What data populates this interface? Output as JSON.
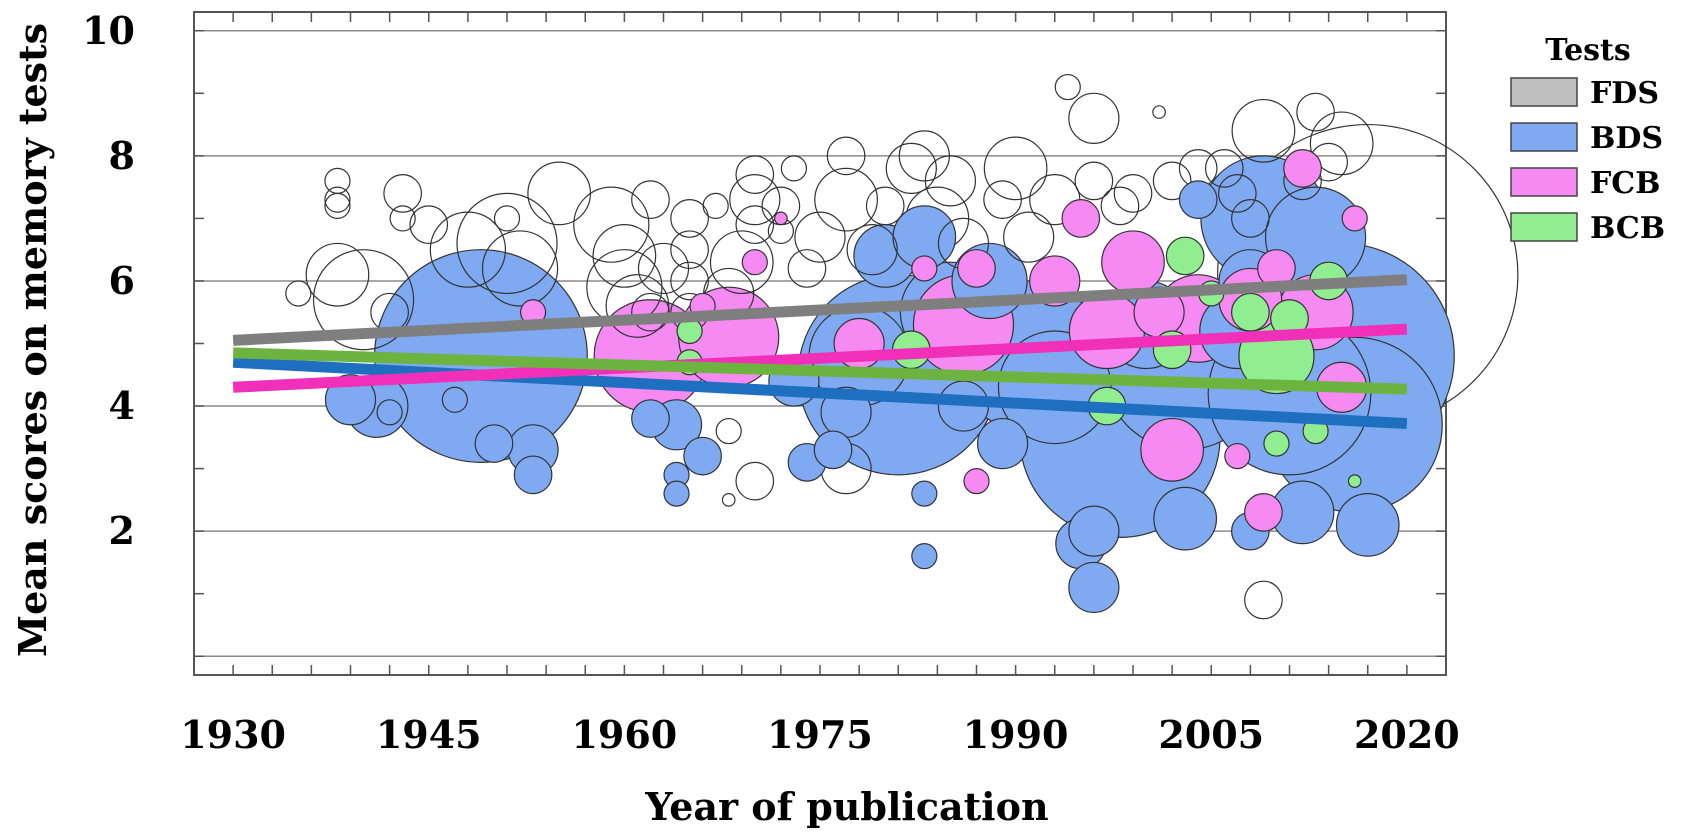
{
  "chart_data": {
    "type": "scatter",
    "xlabel": "Year of publication",
    "ylabel": "Mean scores on memory tests",
    "xlim": [
      1927,
      2023
    ],
    "ylim": [
      -0.3,
      10.3
    ],
    "xticks": [
      1930,
      1945,
      1960,
      1975,
      1990,
      2005,
      2020
    ],
    "yticks": [
      2,
      4,
      6,
      8,
      10
    ],
    "grid": true,
    "legend": {
      "title": "Tests",
      "placement": "right-top"
    },
    "series": [
      {
        "name": "FDS",
        "color": "#c0c0c0",
        "marker_fill": "#ffffff",
        "trend": {
          "x": [
            1930,
            2020
          ],
          "y": [
            5.05,
            6.02
          ],
          "color": "#7f7f7f"
        },
        "points": [
          {
            "x": 1935,
            "y": 5.8,
            "s": 0.2
          },
          {
            "x": 1938,
            "y": 7.6,
            "s": 0.2
          },
          {
            "x": 1938,
            "y": 7.3,
            "s": 0.2
          },
          {
            "x": 1938,
            "y": 7.2,
            "s": 0.2
          },
          {
            "x": 1938,
            "y": 6.1,
            "s": 0.5
          },
          {
            "x": 1940,
            "y": 5.7,
            "s": 0.8
          },
          {
            "x": 1942,
            "y": 5.5,
            "s": 0.3
          },
          {
            "x": 1943,
            "y": 7.4,
            "s": 0.3
          },
          {
            "x": 1943,
            "y": 7.0,
            "s": 0.2
          },
          {
            "x": 1945,
            "y": 6.9,
            "s": 0.3
          },
          {
            "x": 1948,
            "y": 6.5,
            "s": 0.6
          },
          {
            "x": 1951,
            "y": 6.6,
            "s": 0.8
          },
          {
            "x": 1952,
            "y": 6.2,
            "s": 0.6
          },
          {
            "x": 1951,
            "y": 7.0,
            "s": 0.2
          },
          {
            "x": 1955,
            "y": 7.4,
            "s": 0.5
          },
          {
            "x": 1959,
            "y": 6.9,
            "s": 0.6
          },
          {
            "x": 1960,
            "y": 6.4,
            "s": 0.5
          },
          {
            "x": 1960,
            "y": 5.9,
            "s": 0.6
          },
          {
            "x": 1961,
            "y": 5.6,
            "s": 0.5
          },
          {
            "x": 1962,
            "y": 7.3,
            "s": 0.3
          },
          {
            "x": 1963,
            "y": 6.2,
            "s": 0.4
          },
          {
            "x": 1965,
            "y": 7.0,
            "s": 0.3
          },
          {
            "x": 1965,
            "y": 6.5,
            "s": 0.3
          },
          {
            "x": 1965,
            "y": 6.0,
            "s": 0.3
          },
          {
            "x": 1965,
            "y": 5.5,
            "s": 0.3
          },
          {
            "x": 1967,
            "y": 7.2,
            "s": 0.2
          },
          {
            "x": 1968,
            "y": 5.8,
            "s": 0.4
          },
          {
            "x": 1969,
            "y": 6.3,
            "s": 0.5
          },
          {
            "x": 1970,
            "y": 7.3,
            "s": 0.4
          },
          {
            "x": 1970,
            "y": 6.9,
            "s": 0.3
          },
          {
            "x": 1970,
            "y": 7.7,
            "s": 0.3
          },
          {
            "x": 1972,
            "y": 7.2,
            "s": 0.3
          },
          {
            "x": 1972,
            "y": 6.8,
            "s": 0.2
          },
          {
            "x": 1973,
            "y": 7.8,
            "s": 0.2
          },
          {
            "x": 1974,
            "y": 6.2,
            "s": 0.3
          },
          {
            "x": 1975,
            "y": 6.7,
            "s": 0.4
          },
          {
            "x": 1977,
            "y": 7.3,
            "s": 0.5
          },
          {
            "x": 1977,
            "y": 8.0,
            "s": 0.3
          },
          {
            "x": 1979,
            "y": 6.5,
            "s": 0.4
          },
          {
            "x": 1980,
            "y": 7.2,
            "s": 0.3
          },
          {
            "x": 1982,
            "y": 7.8,
            "s": 0.4
          },
          {
            "x": 1983,
            "y": 8.0,
            "s": 0.4
          },
          {
            "x": 1984,
            "y": 7.0,
            "s": 0.5
          },
          {
            "x": 1985,
            "y": 7.6,
            "s": 0.4
          },
          {
            "x": 1986,
            "y": 6.6,
            "s": 0.4
          },
          {
            "x": 1989,
            "y": 7.3,
            "s": 0.3
          },
          {
            "x": 1990,
            "y": 7.8,
            "s": 0.5
          },
          {
            "x": 1991,
            "y": 6.7,
            "s": 0.4
          },
          {
            "x": 1993,
            "y": 7.3,
            "s": 0.4
          },
          {
            "x": 1994,
            "y": 9.1,
            "s": 0.2
          },
          {
            "x": 1996,
            "y": 8.6,
            "s": 0.4
          },
          {
            "x": 1996,
            "y": 7.6,
            "s": 0.3
          },
          {
            "x": 1998,
            "y": 7.2,
            "s": 0.3
          },
          {
            "x": 1999,
            "y": 7.4,
            "s": 0.3
          },
          {
            "x": 2001,
            "y": 8.7,
            "s": 0.1
          },
          {
            "x": 2002,
            "y": 7.6,
            "s": 0.3
          },
          {
            "x": 2004,
            "y": 7.8,
            "s": 0.3
          },
          {
            "x": 2006,
            "y": 7.8,
            "s": 0.3
          },
          {
            "x": 2007,
            "y": 7.4,
            "s": 0.3
          },
          {
            "x": 2008,
            "y": 7.0,
            "s": 0.3
          },
          {
            "x": 2009,
            "y": 8.4,
            "s": 0.5
          },
          {
            "x": 2012,
            "y": 7.6,
            "s": 0.3
          },
          {
            "x": 2013,
            "y": 8.7,
            "s": 0.3
          },
          {
            "x": 2014,
            "y": 7.9,
            "s": 0.3
          },
          {
            "x": 2015,
            "y": 8.2,
            "s": 0.5
          },
          {
            "x": 2017,
            "y": 6.1,
            "s": 2.4
          },
          {
            "x": 1962,
            "y": 5.5,
            "s": 0.3
          },
          {
            "x": 1968,
            "y": 3.6,
            "s": 0.2
          },
          {
            "x": 1968,
            "y": 2.5,
            "s": 0.1
          },
          {
            "x": 1970,
            "y": 2.8,
            "s": 0.3
          },
          {
            "x": 1977,
            "y": 3.0,
            "s": 0.4
          },
          {
            "x": 2009,
            "y": 0.9,
            "s": 0.3
          }
        ]
      },
      {
        "name": "BDS",
        "color": "#7faaf2",
        "marker_fill": "#7faaf2",
        "trend": {
          "x": [
            1930,
            2020
          ],
          "y": [
            4.7,
            3.72
          ],
          "color": "#1f6fc0"
        },
        "points": [
          {
            "x": 1939,
            "y": 4.1,
            "s": 0.4
          },
          {
            "x": 1941,
            "y": 4.0,
            "s": 0.5
          },
          {
            "x": 1942,
            "y": 3.9,
            "s": 0.2
          },
          {
            "x": 1947,
            "y": 4.1,
            "s": 0.2
          },
          {
            "x": 1949,
            "y": 4.8,
            "s": 1.7
          },
          {
            "x": 1950,
            "y": 3.4,
            "s": 0.3
          },
          {
            "x": 1953,
            "y": 3.3,
            "s": 0.4
          },
          {
            "x": 1953,
            "y": 2.9,
            "s": 0.3
          },
          {
            "x": 1962,
            "y": 3.8,
            "s": 0.3
          },
          {
            "x": 1964,
            "y": 3.7,
            "s": 0.4
          },
          {
            "x": 1964,
            "y": 2.9,
            "s": 0.2
          },
          {
            "x": 1964,
            "y": 2.6,
            "s": 0.2
          },
          {
            "x": 1966,
            "y": 3.2,
            "s": 0.3
          },
          {
            "x": 1973,
            "y": 4.4,
            "s": 0.4
          },
          {
            "x": 1974,
            "y": 3.1,
            "s": 0.3
          },
          {
            "x": 1976,
            "y": 3.3,
            "s": 0.3
          },
          {
            "x": 1977,
            "y": 3.9,
            "s": 0.4
          },
          {
            "x": 1978,
            "y": 4.8,
            "s": 0.8
          },
          {
            "x": 1980,
            "y": 6.4,
            "s": 0.5
          },
          {
            "x": 1981,
            "y": 4.5,
            "s": 1.6
          },
          {
            "x": 1983,
            "y": 6.7,
            "s": 0.5
          },
          {
            "x": 1983,
            "y": 2.6,
            "s": 0.2
          },
          {
            "x": 1983,
            "y": 1.6,
            "s": 0.2
          },
          {
            "x": 1985,
            "y": 5.5,
            "s": 0.8
          },
          {
            "x": 1986,
            "y": 4.0,
            "s": 0.4
          },
          {
            "x": 1988,
            "y": 6.0,
            "s": 0.6
          },
          {
            "x": 1989,
            "y": 3.4,
            "s": 0.4
          },
          {
            "x": 1991,
            "y": 4.8,
            "s": 1.2
          },
          {
            "x": 1993,
            "y": 4.3,
            "s": 0.9
          },
          {
            "x": 1995,
            "y": 1.8,
            "s": 0.4
          },
          {
            "x": 1996,
            "y": 2.0,
            "s": 0.4
          },
          {
            "x": 1996,
            "y": 1.1,
            "s": 0.4
          },
          {
            "x": 1998,
            "y": 3.5,
            "s": 1.6
          },
          {
            "x": 2000,
            "y": 5.3,
            "s": 0.7
          },
          {
            "x": 2003,
            "y": 4.6,
            "s": 1.3
          },
          {
            "x": 2003,
            "y": 2.2,
            "s": 0.5
          },
          {
            "x": 2004,
            "y": 7.3,
            "s": 0.3
          },
          {
            "x": 2007,
            "y": 5.2,
            "s": 0.6
          },
          {
            "x": 2008,
            "y": 6.0,
            "s": 0.5
          },
          {
            "x": 2008,
            "y": 2.0,
            "s": 0.3
          },
          {
            "x": 2009,
            "y": 7.0,
            "s": 1.0
          },
          {
            "x": 2011,
            "y": 4.2,
            "s": 1.3
          },
          {
            "x": 2012,
            "y": 2.3,
            "s": 0.5
          },
          {
            "x": 2013,
            "y": 6.7,
            "s": 0.8
          },
          {
            "x": 2015,
            "y": 4.8,
            "s": 1.8
          },
          {
            "x": 2016,
            "y": 3.7,
            "s": 1.4
          },
          {
            "x": 2017,
            "y": 2.1,
            "s": 0.5
          }
        ]
      },
      {
        "name": "FCB",
        "color": "#f58af2",
        "marker_fill": "#f58af2",
        "trend": {
          "x": [
            1930,
            2020
          ],
          "y": [
            4.3,
            5.23
          ],
          "color": "#f030b8"
        },
        "points": [
          {
            "x": 1953,
            "y": 5.5,
            "s": 0.2
          },
          {
            "x": 1962,
            "y": 4.8,
            "s": 0.9
          },
          {
            "x": 1966,
            "y": 5.6,
            "s": 0.2
          },
          {
            "x": 1968,
            "y": 5.1,
            "s": 0.8
          },
          {
            "x": 1970,
            "y": 6.3,
            "s": 0.2
          },
          {
            "x": 1972,
            "y": 7.0,
            "s": 0.1
          },
          {
            "x": 1978,
            "y": 5.0,
            "s": 0.4
          },
          {
            "x": 1983,
            "y": 6.2,
            "s": 0.2
          },
          {
            "x": 1986,
            "y": 5.3,
            "s": 0.8
          },
          {
            "x": 1987,
            "y": 6.2,
            "s": 0.3
          },
          {
            "x": 1987,
            "y": 2.8,
            "s": 0.2
          },
          {
            "x": 1993,
            "y": 6.0,
            "s": 0.4
          },
          {
            "x": 1995,
            "y": 7.0,
            "s": 0.3
          },
          {
            "x": 1997,
            "y": 5.2,
            "s": 0.6
          },
          {
            "x": 1999,
            "y": 6.3,
            "s": 0.5
          },
          {
            "x": 2001,
            "y": 5.5,
            "s": 0.4
          },
          {
            "x": 2002,
            "y": 3.3,
            "s": 0.5
          },
          {
            "x": 2004,
            "y": 5.4,
            "s": 0.7
          },
          {
            "x": 2007,
            "y": 3.2,
            "s": 0.2
          },
          {
            "x": 2008,
            "y": 5.7,
            "s": 0.5
          },
          {
            "x": 2009,
            "y": 2.3,
            "s": 0.3
          },
          {
            "x": 2010,
            "y": 6.2,
            "s": 0.3
          },
          {
            "x": 2012,
            "y": 7.8,
            "s": 0.3
          },
          {
            "x": 2013,
            "y": 5.5,
            "s": 0.6
          },
          {
            "x": 2015,
            "y": 4.3,
            "s": 0.4
          },
          {
            "x": 2016,
            "y": 7.0,
            "s": 0.2
          }
        ]
      },
      {
        "name": "BCB",
        "color": "#90ee90",
        "marker_fill": "#90ee90",
        "trend": {
          "x": [
            1930,
            2020
          ],
          "y": [
            4.85,
            4.27
          ],
          "color": "#6db33f"
        },
        "points": [
          {
            "x": 1965,
            "y": 5.2,
            "s": 0.2
          },
          {
            "x": 1965,
            "y": 4.7,
            "s": 0.2
          },
          {
            "x": 1982,
            "y": 4.9,
            "s": 0.3
          },
          {
            "x": 1997,
            "y": 4.0,
            "s": 0.3
          },
          {
            "x": 2002,
            "y": 4.9,
            "s": 0.3
          },
          {
            "x": 2003,
            "y": 6.4,
            "s": 0.3
          },
          {
            "x": 2005,
            "y": 5.8,
            "s": 0.2
          },
          {
            "x": 2008,
            "y": 5.5,
            "s": 0.3
          },
          {
            "x": 2010,
            "y": 4.8,
            "s": 0.6
          },
          {
            "x": 2011,
            "y": 5.4,
            "s": 0.3
          },
          {
            "x": 2013,
            "y": 3.6,
            "s": 0.2
          },
          {
            "x": 2014,
            "y": 6.0,
            "s": 0.3
          },
          {
            "x": 2010,
            "y": 3.4,
            "s": 0.2
          },
          {
            "x": 2016,
            "y": 2.8,
            "s": 0.1
          }
        ]
      }
    ]
  }
}
